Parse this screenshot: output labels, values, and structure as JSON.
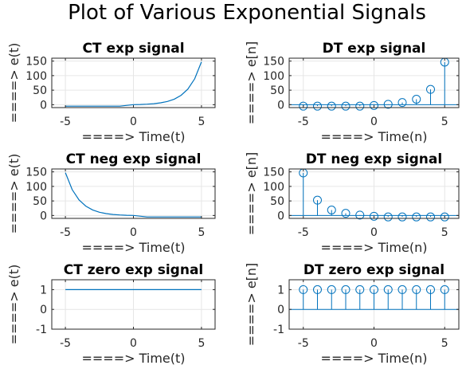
{
  "figure": {
    "title": "Plot of Various Exponential Signals"
  },
  "colors": {
    "series": "#0072bd",
    "axis": "#262626",
    "grid": "#e6e6e6"
  },
  "chart_data": [
    {
      "id": "ct_exp",
      "type": "line",
      "title": "CT exp signal",
      "xlabel": "====> Time(t)",
      "ylabel": "====> e(t)",
      "x": [
        -5,
        -4,
        -3,
        -2,
        -1,
        0,
        0.5,
        1,
        1.5,
        2,
        2.5,
        3,
        3.5,
        4,
        4.5,
        5
      ],
      "y": [
        -5,
        -5,
        -5,
        -5,
        -5,
        0.04,
        0.7,
        1.7,
        3.5,
        6.4,
        11.2,
        19.1,
        32.1,
        53.6,
        89,
        147.4
      ],
      "xlim": [
        -6,
        6
      ],
      "ylim": [
        -10,
        160
      ],
      "xticks": [
        -5,
        0,
        5
      ],
      "yticks": [
        0,
        50,
        100,
        150
      ],
      "grid": true
    },
    {
      "id": "dt_exp",
      "type": "stem",
      "title": "DT exp signal",
      "xlabel": "====> Time(n)",
      "ylabel": "====> e[n]",
      "x": [
        -5,
        -4,
        -3,
        -2,
        -1,
        0,
        1,
        2,
        3,
        4,
        5
      ],
      "y": [
        -5,
        -5,
        -5,
        -5,
        -5,
        -2.7,
        1.4,
        7.4,
        18.8,
        52.6,
        146.4
      ],
      "xlim": [
        -6,
        6
      ],
      "ylim": [
        -10,
        160
      ],
      "xticks": [
        -5,
        0,
        5
      ],
      "yticks": [
        0,
        50,
        100,
        150
      ],
      "grid": true
    },
    {
      "id": "ct_neg",
      "type": "line",
      "title": "CT neg exp signal",
      "xlabel": "====> Time(t)",
      "ylabel": "====> e(t)",
      "x": [
        -5,
        -4.5,
        -4,
        -3.5,
        -3,
        -2.5,
        -2,
        -1.5,
        -1,
        -0.5,
        0,
        1,
        2,
        3,
        4,
        5
      ],
      "y": [
        147.4,
        89,
        53.6,
        32.1,
        19.1,
        11.2,
        6.4,
        3.5,
        1.7,
        0.7,
        0.04,
        -5,
        -5,
        -5,
        -5,
        -5
      ],
      "xlim": [
        -6,
        6
      ],
      "ylim": [
        -10,
        160
      ],
      "xticks": [
        -5,
        0,
        5
      ],
      "yticks": [
        0,
        50,
        100,
        150
      ],
      "grid": true
    },
    {
      "id": "dt_neg",
      "type": "stem",
      "title": "DT neg exp signal",
      "xlabel": "====> Time(n)",
      "ylabel": "====> e[n]",
      "x": [
        -5,
        -4,
        -3,
        -2,
        -1,
        0,
        1,
        2,
        3,
        4,
        5
      ],
      "y": [
        146.4,
        52.6,
        18.8,
        7.4,
        1.4,
        -2.7,
        -5,
        -5,
        -5,
        -5,
        -5
      ],
      "xlim": [
        -6,
        6
      ],
      "ylim": [
        -10,
        160
      ],
      "xticks": [
        -5,
        0,
        5
      ],
      "yticks": [
        0,
        50,
        100,
        150
      ],
      "grid": true
    },
    {
      "id": "ct_zero",
      "type": "line",
      "title": "CT zero exp signal",
      "xlabel": "====> Time(t)",
      "ylabel": "====> e(t)",
      "x": [
        -5,
        5
      ],
      "y": [
        1,
        1
      ],
      "xlim": [
        -6,
        6
      ],
      "ylim": [
        -1,
        1.5
      ],
      "xticks": [
        -5,
        0,
        5
      ],
      "yticks": [
        -1,
        0,
        1
      ],
      "grid": true
    },
    {
      "id": "dt_zero",
      "type": "stem",
      "title": "DT zero exp signal",
      "xlabel": "====> Time(n)",
      "ylabel": "====> e[n]",
      "x": [
        -5,
        -4,
        -3,
        -2,
        -1,
        0,
        1,
        2,
        3,
        4,
        5
      ],
      "y": [
        1,
        1,
        1,
        1,
        1,
        1,
        1,
        1,
        1,
        1,
        1
      ],
      "xlim": [
        -6,
        6
      ],
      "ylim": [
        -1,
        1.5
      ],
      "xticks": [
        -5,
        0,
        5
      ],
      "yticks": [
        -1,
        0,
        1
      ],
      "grid": true
    }
  ]
}
